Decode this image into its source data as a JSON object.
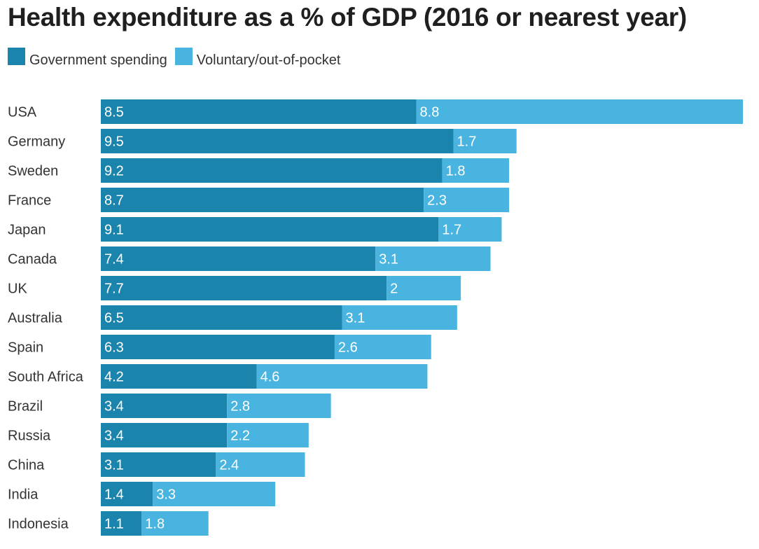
{
  "chart_data": {
    "type": "bar",
    "orientation": "horizontal",
    "stacked": true,
    "title": "Health expenditure as a % of GDP (2016 or nearest year)",
    "xlabel": "",
    "ylabel": "",
    "grid": false,
    "legend_position": "top-left",
    "categories": [
      "USA",
      "Germany",
      "Sweden",
      "France",
      "Japan",
      "Canada",
      "UK",
      "Australia",
      "Spain",
      "South Africa",
      "Brazil",
      "Russia",
      "China",
      "India",
      "Indonesia"
    ],
    "series": [
      {
        "name": "Government spending",
        "color": "#1a84ac",
        "values": [
          8.5,
          9.5,
          9.2,
          8.7,
          9.1,
          7.4,
          7.7,
          6.5,
          6.3,
          4.2,
          3.4,
          3.4,
          3.1,
          1.4,
          1.1
        ],
        "labels": [
          "8.5",
          "9.5",
          "9.2",
          "8.7",
          "9.1",
          "7.4",
          "7.7",
          "6.5",
          "6.3",
          "4.2",
          "3.4",
          "3.4",
          "3.1",
          "1.4",
          "1.1"
        ]
      },
      {
        "name": "Voluntary/out-of-pocket",
        "color": "#4ab4e0",
        "values": [
          8.8,
          1.7,
          1.8,
          2.3,
          1.7,
          3.1,
          2,
          3.1,
          2.6,
          4.6,
          2.8,
          2.2,
          2.4,
          3.3,
          1.8
        ],
        "labels": [
          "8.8",
          "1.7",
          "1.8",
          "2.3",
          "1.7",
          "3.1",
          "2",
          "3.1",
          "2.6",
          "4.6",
          "2.8",
          "2.2",
          "2.4",
          "3.3",
          "1.8"
        ]
      }
    ],
    "xlim": [
      0,
      17.3
    ]
  }
}
